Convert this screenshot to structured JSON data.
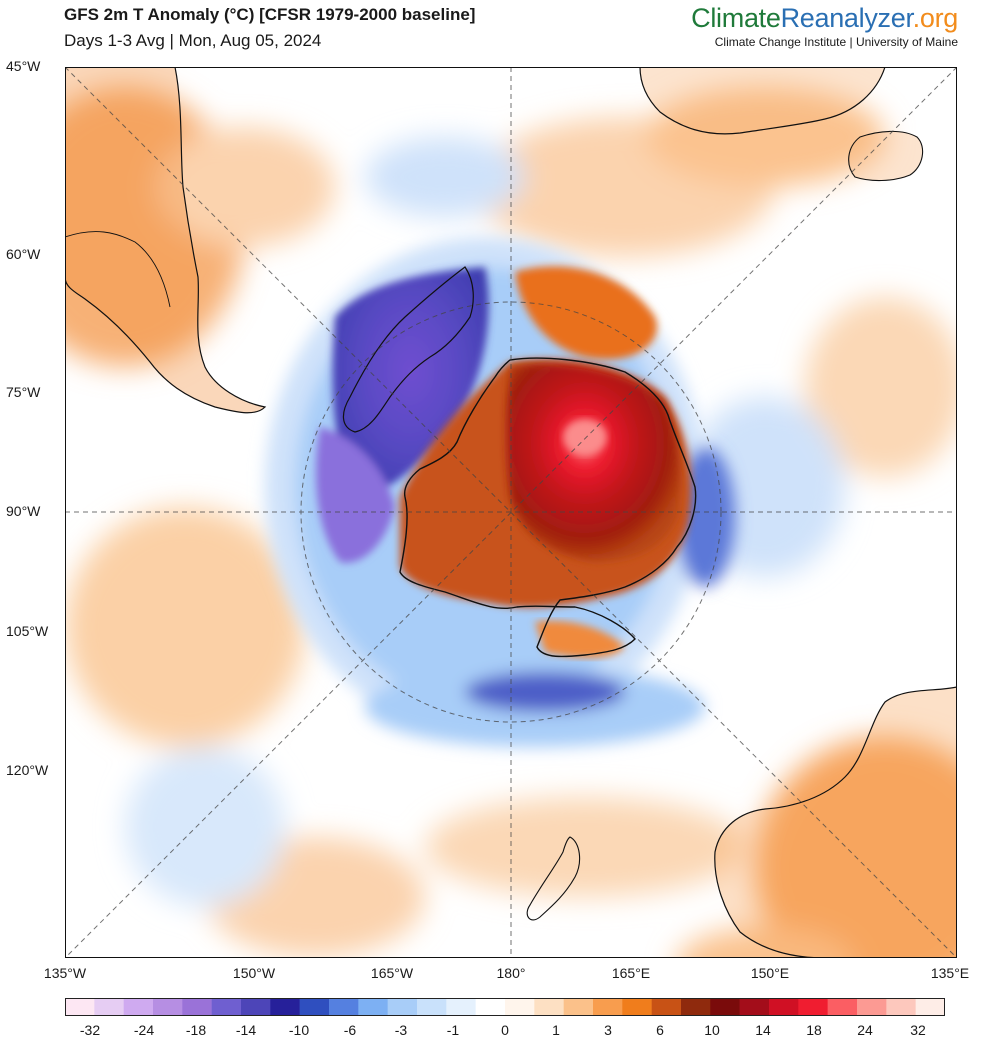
{
  "header": {
    "title": "GFS 2m T Anomaly (°C) [CFSR 1979-2000 baseline]",
    "subtitle": "Days 1-3 Avg | Mon, Aug 05, 2024"
  },
  "brand": {
    "part1": "Climate",
    "part2": "Reanalyzer",
    "part3": ".org",
    "tagline": "Climate Change Institute | University of Maine",
    "colors": {
      "part1": "#1f7a3a",
      "part2": "#2a6fb3",
      "part3": "#f28c1c"
    }
  },
  "map": {
    "projection": "south polar stereographic",
    "left_axis_labels": [
      "45°W",
      "60°W",
      "75°W",
      "90°W",
      "105°W",
      "120°W"
    ],
    "bottom_axis_labels": [
      "135°W",
      "150°W",
      "165°W",
      "180°",
      "165°E",
      "150°E",
      "135°E"
    ]
  },
  "legend": {
    "labels": [
      "-32",
      "-24",
      "-18",
      "-14",
      "-10",
      "-6",
      "-3",
      "-1",
      "0",
      "1",
      "3",
      "6",
      "10",
      "14",
      "18",
      "24",
      "32"
    ],
    "colors": [
      "#fde7f3",
      "#e6cdf3",
      "#cfaaf0",
      "#b68ee3",
      "#9a72d8",
      "#6f5fd0",
      "#4d45b8",
      "#26209a",
      "#2f4fbf",
      "#5580e0",
      "#7db0f3",
      "#a8cdf8",
      "#c9e1fb",
      "#e5f1fd",
      "#ffffff",
      "#fff5ec",
      "#fde0c3",
      "#fbc18a",
      "#f89d4e",
      "#f07d1c",
      "#c85215",
      "#8f2a0d",
      "#7a0b0b",
      "#a30d1a",
      "#d01024",
      "#f01d30",
      "#fb5e63",
      "#fc9a93",
      "#fdc8bd",
      "#feede7"
    ]
  }
}
